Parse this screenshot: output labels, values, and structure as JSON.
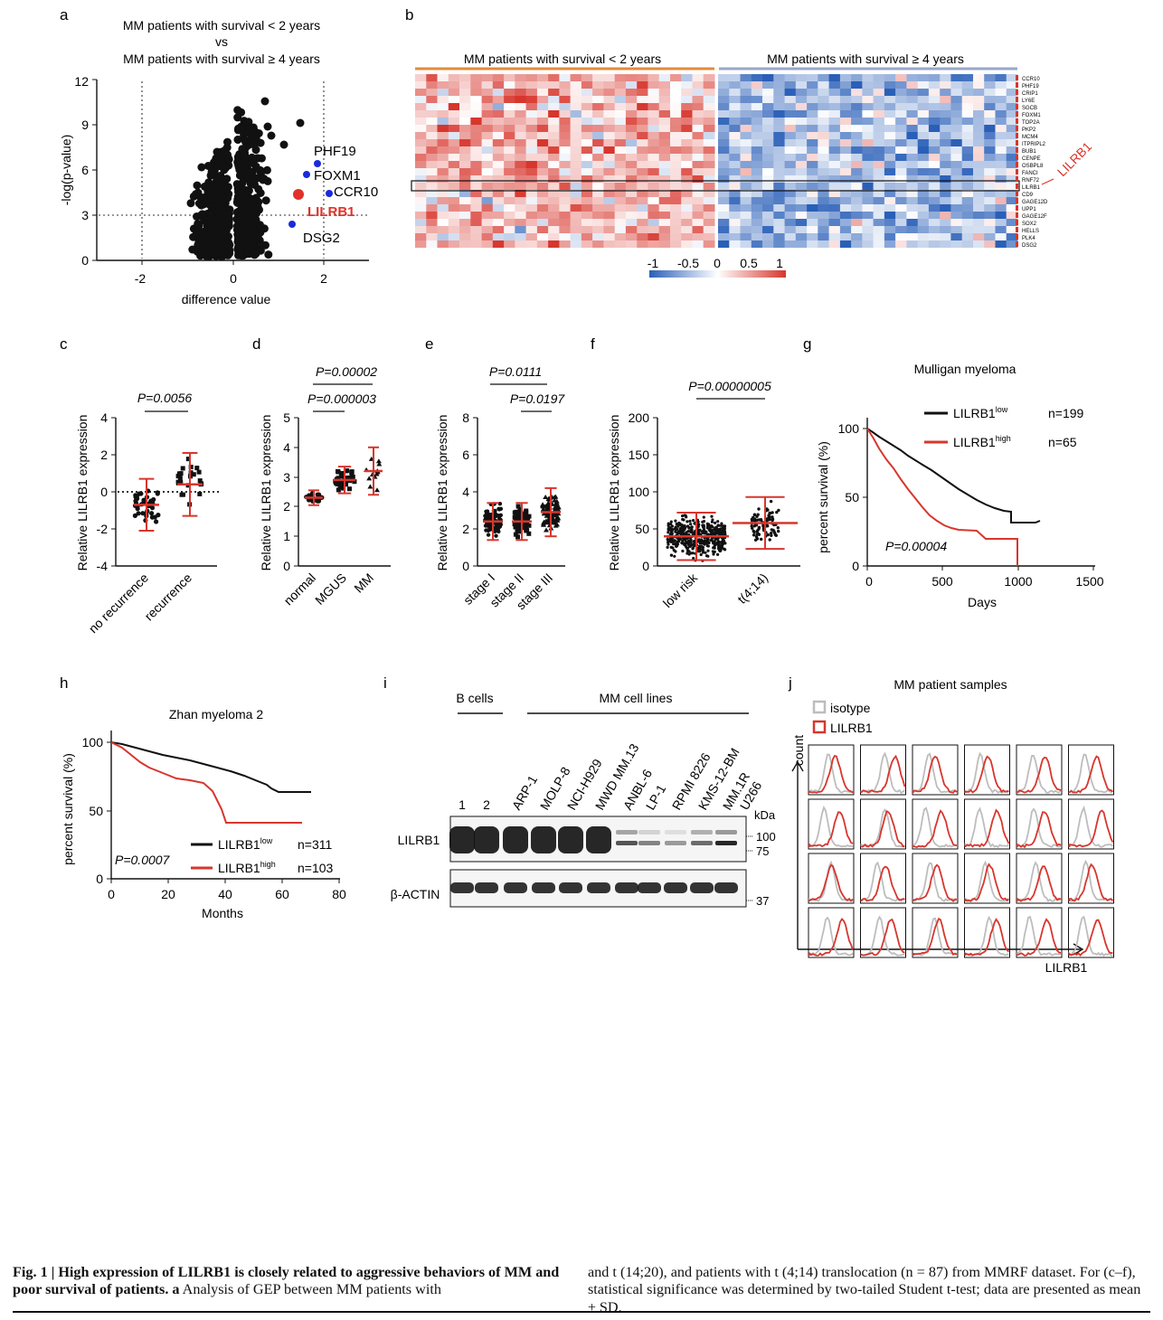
{
  "panels": {
    "a": {
      "letter": "a",
      "title1": "MM patients with survival < 2 years",
      "title2": "vs",
      "title3": "MM patients with survival ≥ 4 years",
      "ylabel": "-log(p-value)",
      "xlabel": "difference value",
      "yticks": [
        "0",
        "3",
        "6",
        "9",
        "12"
      ],
      "xticks": [
        "-2",
        "0",
        "2"
      ],
      "genes": [
        {
          "label": "PHF19",
          "color": "#1a2bd8"
        },
        {
          "label": "FOXM1",
          "color": "#1a2bd8"
        },
        {
          "label": "CCR10",
          "color": "#1a2bd8"
        },
        {
          "label": "LILRB1",
          "color": "#e0312a"
        },
        {
          "label": "DSG2",
          "color": "#1a2bd8"
        }
      ]
    },
    "b": {
      "letter": "b",
      "group1": "MM patients with survival < 2 years",
      "group2": "MM patients with survival ≥ 4 years",
      "genes": [
        "CCR10",
        "PHF19",
        "CRIP1",
        "LY6E",
        "SGCB",
        "FOXM1",
        "TOP2A",
        "PKP2",
        "MCM4",
        "ITPRIPL2",
        "BUB1",
        "CENPE",
        "OSBPL8",
        "FANCI",
        "RNF72",
        "LILRB1",
        "CD9",
        "GAGE12D",
        "UPP1",
        "GAGE12F",
        "SOX2",
        "HELLS",
        "PLK4",
        "DSG2"
      ],
      "highlight": "LILRB1",
      "scale_ticks": [
        "-1",
        "-0.5",
        "0",
        "0.5",
        "1"
      ]
    },
    "c": {
      "letter": "c",
      "ylabel": "Relative LILRB1 expression",
      "pvalue": "P=0.0056",
      "yticks": [
        "-4",
        "-2",
        "0",
        "2",
        "4"
      ],
      "groups": [
        "no recurrence",
        "recurrence"
      ]
    },
    "d": {
      "letter": "d",
      "ylabel": "Relative LILRB1 expression",
      "p1": "P=0.00002",
      "p2": "P=0.000003",
      "yticks": [
        "0",
        "1",
        "2",
        "3",
        "4",
        "5"
      ],
      "groups": [
        "normal",
        "MGUS",
        "MM"
      ]
    },
    "e": {
      "letter": "e",
      "ylabel": "Relative LILRB1 expression",
      "p1": "P=0.0111",
      "p2": "P=0.0197",
      "yticks": [
        "0",
        "2",
        "4",
        "6",
        "8"
      ],
      "groups": [
        "stage I",
        "stage II",
        "stage III"
      ]
    },
    "f": {
      "letter": "f",
      "ylabel": "Relative LILRB1 expression",
      "pvalue": "P=0.00000005",
      "yticks": [
        "0",
        "50",
        "100",
        "150",
        "200"
      ],
      "groups": [
        "low risk",
        "t(4;14)"
      ]
    },
    "g": {
      "letter": "g",
      "title": "Mulligan myeloma",
      "ylabel": "percent survival (%)",
      "xlabel": "Days",
      "yticks": [
        "0",
        "50",
        "100"
      ],
      "xticks": [
        "0",
        "500",
        "1000",
        "1500"
      ],
      "legend": [
        {
          "name": "LILRB1",
          "sup": "low",
          "n": "n=199",
          "color": "#111111"
        },
        {
          "name": "LILRB1",
          "sup": "high",
          "n": "n=65",
          "color": "#d7362d"
        }
      ],
      "pvalue": "P=0.00004"
    },
    "h": {
      "letter": "h",
      "title": "Zhan myeloma 2",
      "ylabel": "percent survival (%)",
      "xlabel": "Months",
      "yticks": [
        "0",
        "50",
        "100"
      ],
      "xticks": [
        "0",
        "20",
        "40",
        "60",
        "80"
      ],
      "legend": [
        {
          "name": "LILRB1",
          "sup": "low",
          "n": "n=311",
          "color": "#111111"
        },
        {
          "name": "LILRB1",
          "sup": "high",
          "n": "n=103",
          "color": "#d7362d"
        }
      ],
      "pvalue": "P=0.0007"
    },
    "i": {
      "letter": "i",
      "group1": "B cells",
      "group2": "MM cell lines",
      "lanes": [
        "1",
        "2",
        "ARP-1",
        "MOLP-8",
        "NCI-H929",
        "MWD MM.13",
        "ANBL-6",
        "LP-1",
        "RPMI 8226",
        "KMS-12-BM",
        "MM.1R",
        "U266"
      ],
      "row1": "LILRB1",
      "row2": "β-ACTIN",
      "kda": "kDa",
      "markers": [
        "100",
        "75",
        "37"
      ]
    },
    "j": {
      "letter": "j",
      "title": "MM patient samples",
      "legend1": "isotype",
      "legend2": "LILRB1",
      "ylabel": "count",
      "xlabel": "LILRB1"
    }
  },
  "caption": {
    "left": [
      {
        "t": "Fig. 1 | High expression of LILRB1 is closely related to aggressive behaviors of",
        "b": true
      },
      {
        "t": "MM and poor survival of patients. a",
        "b": true
      },
      {
        "t": " Analysis of GEP between MM patients with",
        "b": false
      }
    ],
    "right": [
      {
        "t": "and t (14;20), and patients with t (4;14) translocation (n = 87) from MMRF dataset.",
        "b": false
      },
      {
        "t": " For (c–f), statistical significance was determined by two-tailed Student t-test; data",
        "b": false
      },
      {
        "t": " are presented as mean ± SD.",
        "b": false
      }
    ]
  },
  "colors": {
    "red": "#d7362d",
    "blue": "#2a5fb8",
    "black": "#111111",
    "grey": "#bdbdbd"
  }
}
